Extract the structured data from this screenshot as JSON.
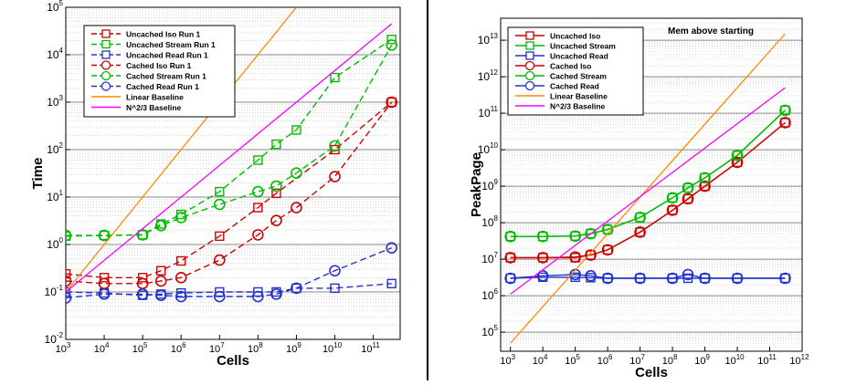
{
  "chart_data": [
    {
      "type": "line",
      "log_x": true,
      "log_y": true,
      "xlabel": "Cells",
      "ylabel": "Time",
      "xlim": [
        1000,
        500000000000
      ],
      "ylim": [
        0.01,
        100000
      ],
      "x_tick_values": [
        1000,
        10000,
        100000,
        1000000,
        10000000,
        100000000,
        1000000000,
        10000000000,
        100000000000
      ],
      "y_tick_values": [
        0.01,
        0.1,
        1,
        10,
        100,
        1000,
        10000,
        100000
      ],
      "grid": true,
      "legend_position": "top-left",
      "series": [
        {
          "name": "Uncached Iso Run 1",
          "color": "#cc0000",
          "dash": true,
          "marker": "square",
          "x": [
            1000,
            10000,
            100000,
            300000,
            1000000,
            10000000,
            100000000,
            300000000,
            10000000000,
            300000000000
          ],
          "y": [
            0.24,
            0.2,
            0.2,
            0.28,
            0.45,
            1.5,
            6,
            12,
            100,
            1000
          ]
        },
        {
          "name": "Uncached Stream Run 1",
          "color": "#00bb00",
          "dash": true,
          "marker": "square",
          "x": [
            1000,
            10000,
            100000,
            300000,
            1000000,
            10000000,
            100000000,
            300000000,
            1000000000,
            10000000000,
            300000000000
          ],
          "y": [
            1.5,
            1.55,
            1.6,
            2.7,
            4.3,
            13,
            60,
            130,
            260,
            3300,
            21000
          ]
        },
        {
          "name": "Uncached Read Run 1",
          "color": "#2233cc",
          "dash": true,
          "marker": "square",
          "x": [
            1000,
            10000,
            100000,
            300000,
            1000000,
            10000000,
            100000000,
            300000000,
            1000000000,
            10000000000,
            300000000000
          ],
          "y": [
            0.1,
            0.095,
            0.085,
            0.09,
            0.095,
            0.1,
            0.1,
            0.1,
            0.12,
            0.12,
            0.15
          ]
        },
        {
          "name": "Cached Iso Run 1",
          "color": "#cc0000",
          "dash": true,
          "marker": "circle",
          "x": [
            1000,
            10000,
            100000,
            300000,
            1000000,
            10000000,
            100000000,
            300000000,
            1000000000,
            10000000000,
            300000000000
          ],
          "y": [
            0.17,
            0.15,
            0.15,
            0.17,
            0.2,
            0.47,
            1.6,
            3.2,
            6,
            27,
            1000
          ]
        },
        {
          "name": "Cached Stream Run 1",
          "color": "#00bb00",
          "dash": true,
          "marker": "circle",
          "x": [
            1000,
            10000,
            100000,
            300000,
            1000000,
            10000000,
            100000000,
            300000000,
            1000000000,
            10000000000,
            300000000000
          ],
          "y": [
            1.55,
            1.55,
            1.6,
            2.5,
            3.7,
            7,
            13,
            17,
            32,
            120,
            16000
          ]
        },
        {
          "name": "Cached Read Run 1",
          "color": "#2233cc",
          "dash": true,
          "marker": "circle",
          "x": [
            1000,
            10000,
            100000,
            300000,
            1000000,
            10000000,
            100000000,
            300000000,
            1000000000,
            10000000000,
            300000000000
          ],
          "y": [
            0.075,
            0.09,
            0.09,
            0.085,
            0.08,
            0.08,
            0.08,
            0.09,
            0.12,
            0.28,
            0.85
          ]
        },
        {
          "name": "Linear Baseline",
          "color": "#ff8800",
          "dash": false,
          "marker": "none",
          "x": [
            1000,
            1000000000
          ],
          "y": [
            0.1,
            100000
          ]
        },
        {
          "name": "N^2/3 Baseline",
          "color": "#ff00ff",
          "dash": false,
          "marker": "none",
          "x": [
            1000,
            300000000000
          ],
          "y": [
            0.1,
            45000
          ]
        }
      ]
    },
    {
      "type": "line",
      "log_x": true,
      "log_y": true,
      "title": "Mem above starting",
      "xlabel": "Cells",
      "ylabel": "PeakPage",
      "xlim": [
        500,
        1000000000000
      ],
      "ylim": [
        30000,
        40000000000000
      ],
      "x_tick_values": [
        1000,
        10000,
        100000,
        1000000,
        10000000,
        100000000,
        1000000000,
        10000000000,
        100000000000,
        1000000000000
      ],
      "y_tick_values": [
        100000,
        1000000,
        10000000,
        100000000,
        1000000000,
        10000000000,
        100000000000,
        1000000000000,
        10000000000000
      ],
      "grid": true,
      "legend_position": "top-left",
      "series": [
        {
          "name": "Uncached Iso",
          "color": "#cc0000",
          "dash": false,
          "marker": "square",
          "x": [
            1000,
            10000,
            100000,
            300000,
            1000000,
            10000000,
            100000000,
            300000000,
            1000000000,
            10000000000,
            300000000000
          ],
          "y": [
            11000000,
            11000000,
            11000000,
            13000000,
            18000000,
            55000000,
            220000000,
            450000000,
            1000000000,
            4500000000,
            55000000000
          ]
        },
        {
          "name": "Uncached Stream",
          "color": "#00bb00",
          "dash": false,
          "marker": "square",
          "x": [
            1000,
            10000,
            100000,
            300000,
            1000000,
            10000000,
            100000000,
            300000000,
            1000000000,
            10000000000,
            300000000000
          ],
          "y": [
            42000000,
            42000000,
            43000000,
            50000000,
            65000000,
            140000000,
            480000000,
            900000000,
            1700000000,
            7000000000,
            120000000000
          ]
        },
        {
          "name": "Uncached Read",
          "color": "#2233cc",
          "dash": false,
          "marker": "square",
          "x": [
            1000,
            10000,
            100000,
            300000,
            1000000,
            10000000,
            100000000,
            300000000,
            1000000000,
            10000000000,
            300000000000
          ],
          "y": [
            3000000,
            3200000,
            3200000,
            3100000,
            3000000,
            3000000,
            3000000,
            3000000,
            3000000,
            3000000,
            3000000
          ]
        },
        {
          "name": "Cached Iso",
          "color": "#cc0000",
          "dash": false,
          "marker": "circle",
          "x": [
            1000,
            10000,
            100000,
            300000,
            1000000,
            10000000,
            100000000,
            300000000,
            1000000000,
            10000000000,
            300000000000
          ],
          "y": [
            11000000,
            11000000,
            11500000,
            13000000,
            18000000,
            55000000,
            220000000,
            450000000,
            1000000000,
            4500000000,
            55000000000
          ]
        },
        {
          "name": "Cached Stream",
          "color": "#00bb00",
          "dash": false,
          "marker": "circle",
          "x": [
            1000,
            10000,
            100000,
            300000,
            1000000,
            10000000,
            100000000,
            300000000,
            1000000000,
            10000000000,
            300000000000
          ],
          "y": [
            42000000,
            42000000,
            43000000,
            50000000,
            65000000,
            140000000,
            480000000,
            900000000,
            1700000000,
            7000000000,
            120000000000
          ]
        },
        {
          "name": "Cached Read",
          "color": "#2233cc",
          "dash": false,
          "marker": "circle",
          "x": [
            1000,
            10000,
            100000,
            300000,
            1000000,
            10000000,
            100000000,
            300000000,
            1000000000,
            10000000000,
            300000000000
          ],
          "y": [
            3000000,
            3500000,
            3800000,
            3500000,
            3000000,
            3000000,
            3000000,
            3800000,
            3000000,
            3000000,
            3000000
          ]
        },
        {
          "name": "Linear Baseline",
          "color": "#ff8800",
          "dash": false,
          "marker": "none",
          "x": [
            1000,
            300000000000
          ],
          "y": [
            50000,
            15000000000000
          ]
        },
        {
          "name": "N^2/3 Baseline",
          "color": "#ff00ff",
          "dash": false,
          "marker": "none",
          "x": [
            1000,
            300000000000
          ],
          "y": [
            1100000,
            500000000000
          ]
        }
      ]
    }
  ]
}
